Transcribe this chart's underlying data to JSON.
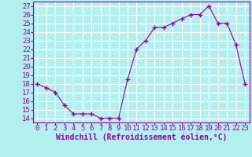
{
  "x": [
    0,
    1,
    2,
    3,
    4,
    5,
    6,
    7,
    8,
    9,
    10,
    11,
    12,
    13,
    14,
    15,
    16,
    17,
    18,
    19,
    20,
    21,
    22,
    23
  ],
  "y": [
    18,
    17.5,
    17,
    15.5,
    14.5,
    14.5,
    14.5,
    14,
    14,
    14,
    18.5,
    22,
    23,
    24.5,
    24.5,
    25,
    25.5,
    26,
    26,
    27,
    25,
    25,
    22.5,
    18
  ],
  "line_color": "#990099",
  "marker": "+",
  "marker_size": 4,
  "background_color": "#b3efef",
  "grid_color": "#ffffff",
  "xlabel": "Windchill (Refroidissement éolien,°C)",
  "xlabel_fontsize": 7,
  "ylabel_ticks": [
    14,
    15,
    16,
    17,
    18,
    19,
    20,
    21,
    22,
    23,
    24,
    25,
    26,
    27
  ],
  "xlim": [
    -0.5,
    23.5
  ],
  "ylim": [
    13.5,
    27.5
  ],
  "xtick_labels": [
    "0",
    "1",
    "2",
    "3",
    "4",
    "5",
    "6",
    "7",
    "8",
    "9",
    "10",
    "11",
    "12",
    "13",
    "14",
    "15",
    "16",
    "17",
    "18",
    "19",
    "20",
    "21",
    "22",
    "23"
  ],
  "tick_fontsize": 6.5
}
